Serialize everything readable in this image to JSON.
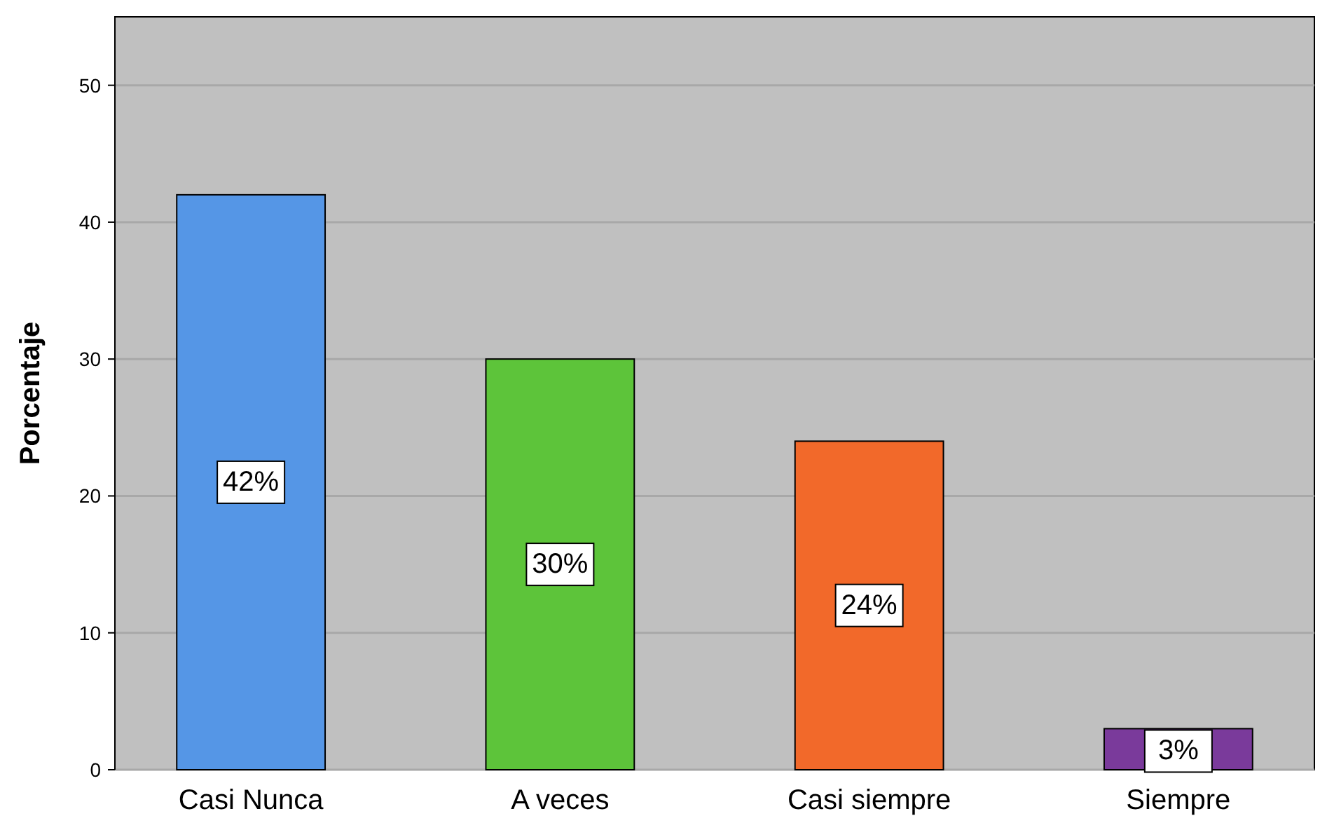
{
  "chart_data": {
    "type": "bar",
    "ylabel": "Porcentaje",
    "categories": [
      "Casi Nunca",
      "A veces",
      "Casi siempre",
      "Siempre"
    ],
    "values": [
      42,
      30,
      24,
      3
    ],
    "colors": [
      "#5596e6",
      "#5dc43a",
      "#f2692a",
      "#7a3a9b"
    ],
    "value_labels": [
      "42%",
      "30%",
      "24%",
      "3%"
    ],
    "ylim": [
      0,
      55
    ],
    "yticks": [
      0,
      10,
      20,
      30,
      40,
      50
    ],
    "grid": "y"
  }
}
